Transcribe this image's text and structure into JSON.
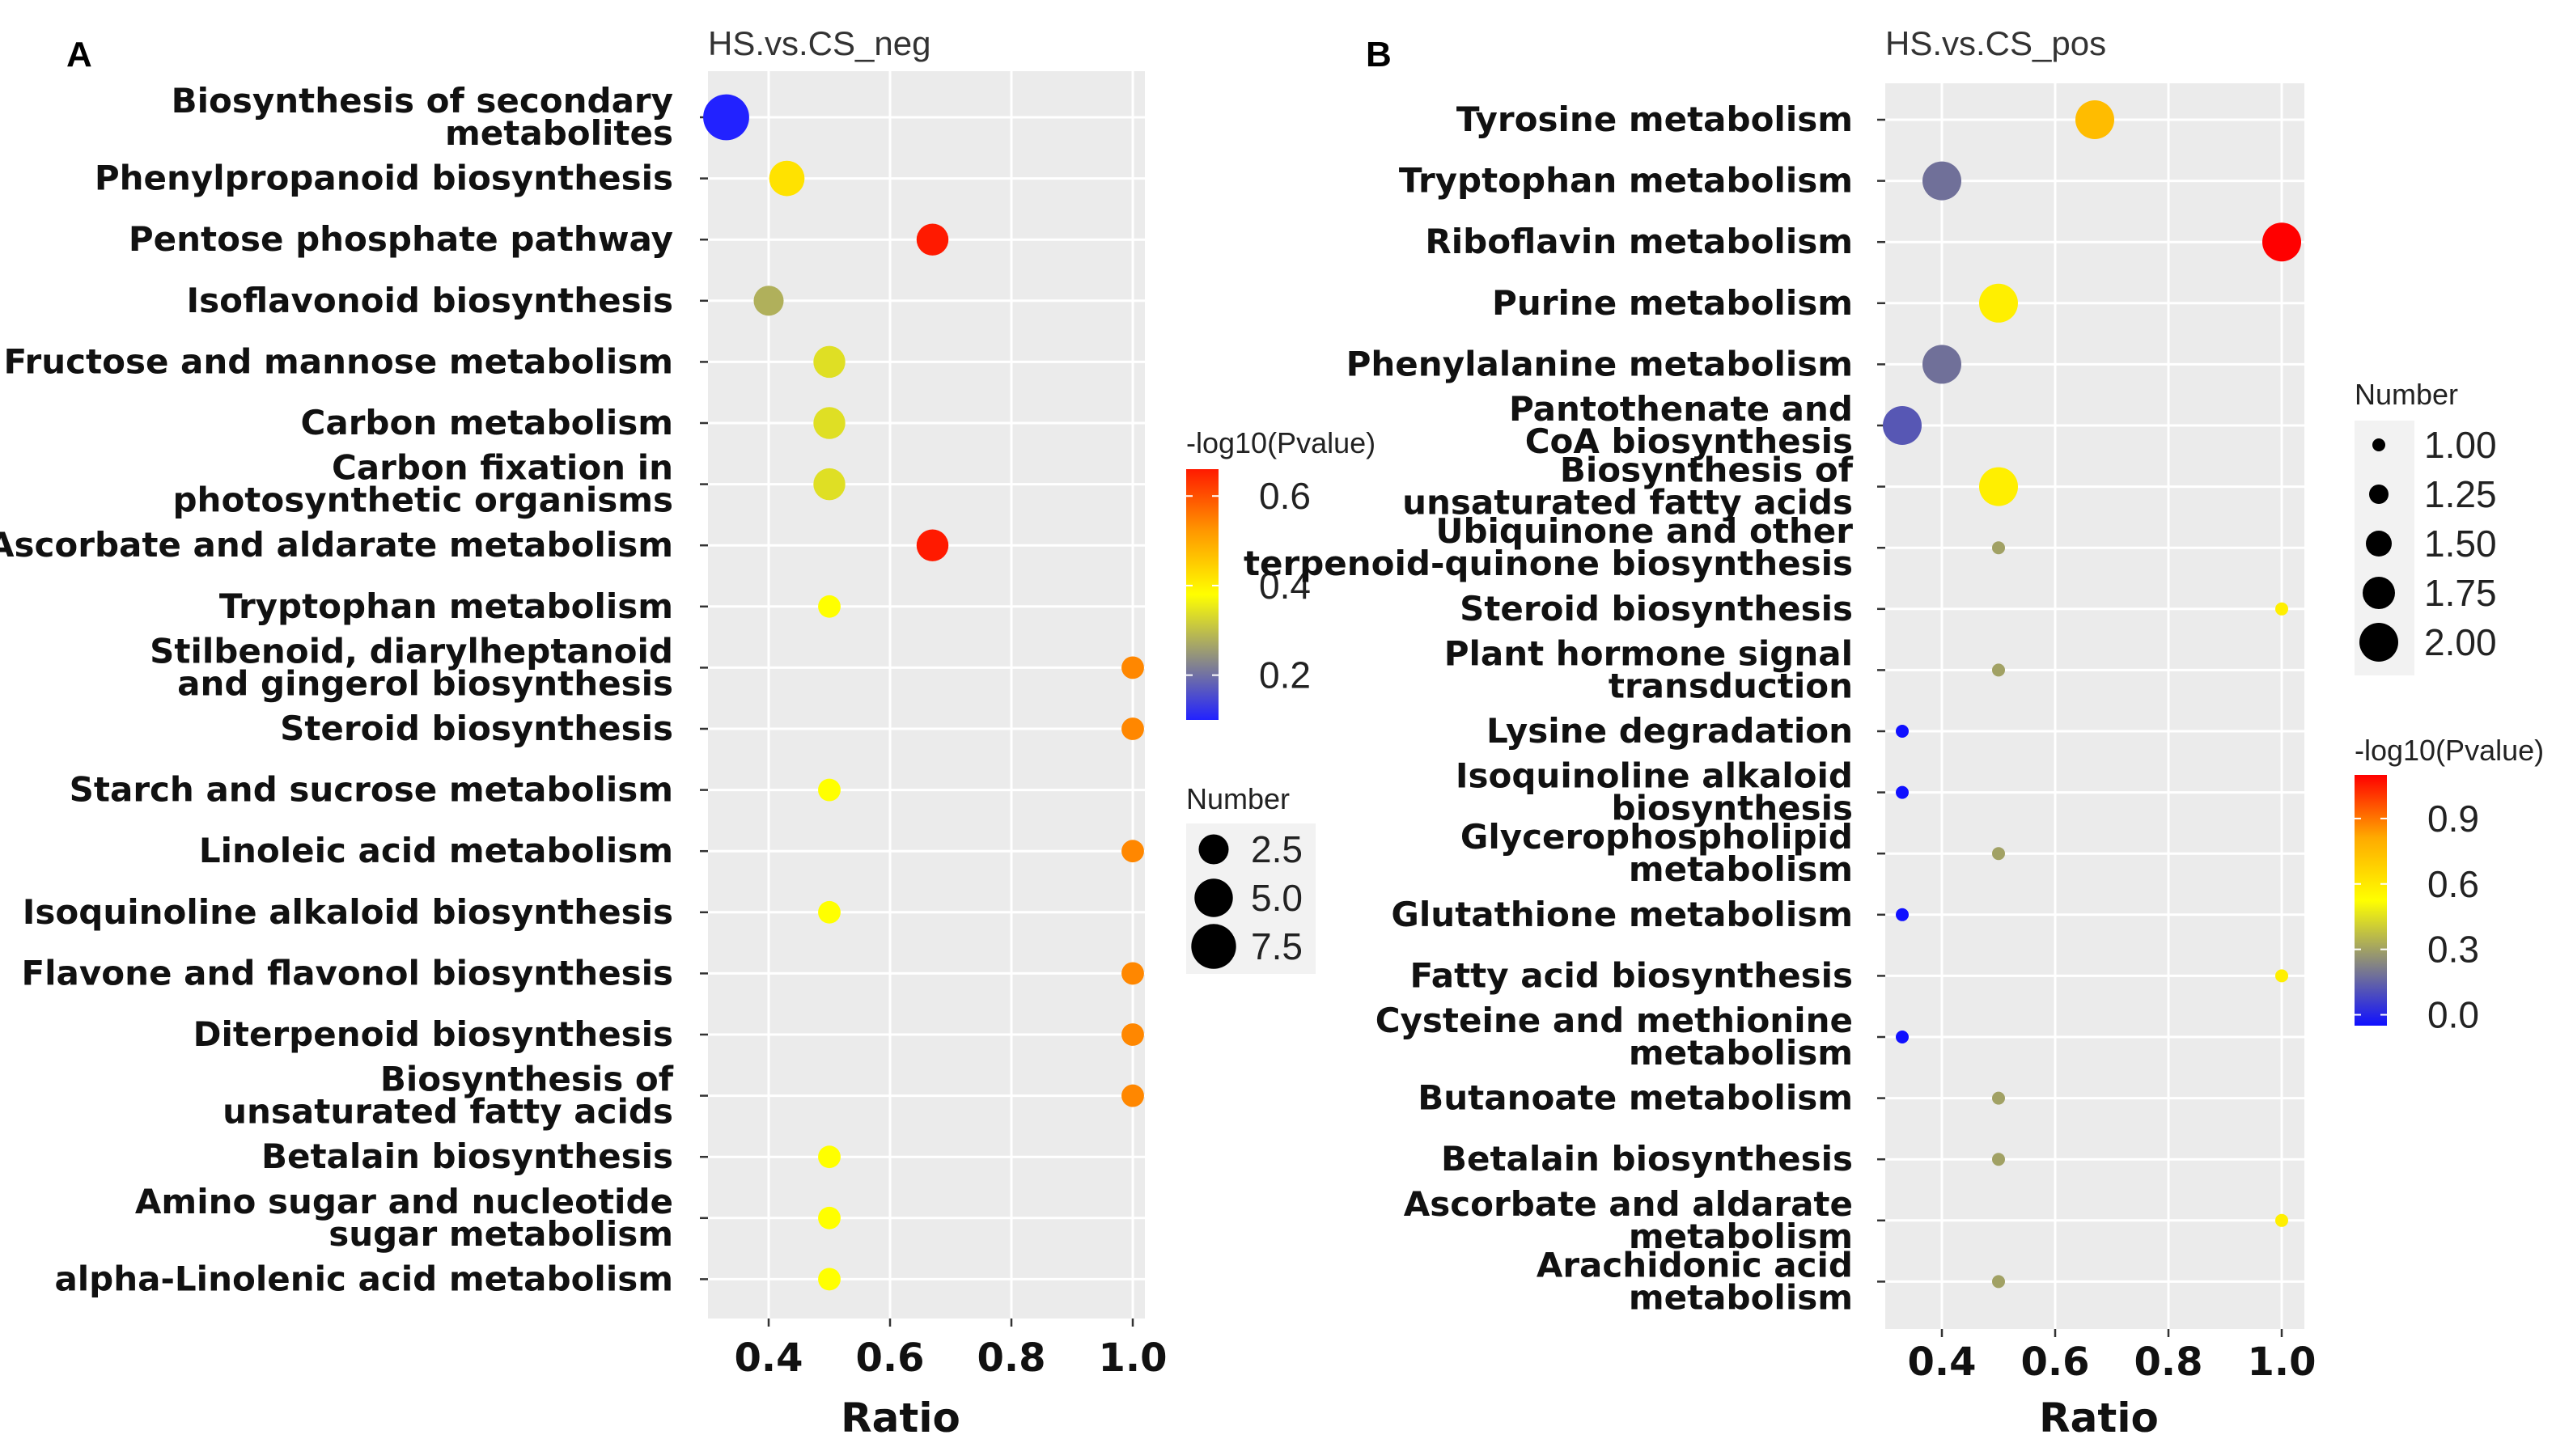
{
  "chart_data": [
    {
      "type": "scatter",
      "panel": "A",
      "title": "HS.vs.CS_neg",
      "xlabel": "Ratio",
      "xlim": [
        0.3,
        1.02
      ],
      "xticks": [
        0.4,
        0.6,
        0.8,
        1.0
      ],
      "xtick_labels": [
        "0.4",
        "0.6",
        "0.8",
        "1.0"
      ],
      "categories": [
        [
          "Biosynthesis of secondary",
          "metabolites"
        ],
        [
          "Phenylpropanoid biosynthesis"
        ],
        [
          "Pentose phosphate pathway"
        ],
        [
          "Isoflavonoid biosynthesis"
        ],
        [
          "Fructose and mannose metabolism"
        ],
        [
          "Carbon metabolism"
        ],
        [
          "Carbon fixation in",
          "photosynthetic organisms"
        ],
        [
          "Ascorbate and aldarate metabolism"
        ],
        [
          "Tryptophan metabolism"
        ],
        [
          "Stilbenoid, diarylheptanoid",
          "and gingerol biosynthesis"
        ],
        [
          "Steroid biosynthesis"
        ],
        [
          "Starch and sucrose metabolism"
        ],
        [
          "Linoleic acid metabolism"
        ],
        [
          "Isoquinoline alkaloid biosynthesis"
        ],
        [
          "Flavone and flavonol biosynthesis"
        ],
        [
          "Diterpenoid biosynthesis"
        ],
        [
          "Biosynthesis of",
          "unsaturated fatty acids"
        ],
        [
          "Betalain biosynthesis"
        ],
        [
          "Amino sugar and nucleotide",
          "sugar metabolism"
        ],
        [
          "alpha-Linolenic acid metabolism"
        ]
      ],
      "ratio": [
        0.33,
        0.43,
        0.67,
        0.4,
        0.5,
        0.5,
        0.5,
        0.67,
        0.5,
        1.0,
        1.0,
        0.5,
        1.0,
        0.5,
        1.0,
        1.0,
        1.0,
        0.5,
        0.5,
        0.5
      ],
      "number": [
        8,
        4,
        3,
        2.5,
        3,
        3,
        3,
        3,
        1,
        1,
        1,
        1,
        1,
        1,
        1,
        1,
        1,
        1,
        1,
        1
      ],
      "neglog10p": [
        0.1,
        0.42,
        0.66,
        0.28,
        0.34,
        0.34,
        0.34,
        0.66,
        0.38,
        0.54,
        0.54,
        0.38,
        0.54,
        0.38,
        0.54,
        0.54,
        0.54,
        0.38,
        0.38,
        0.38
      ],
      "color_legend": {
        "title": "-log10(Pvalue)",
        "min": 0.1,
        "max": 0.66,
        "ticks": [
          0.6,
          0.4,
          0.2
        ],
        "tick_labels": [
          "0.6",
          "0.4",
          "0.2"
        ]
      },
      "size_legend": {
        "title": "Number",
        "values": [
          2.5,
          5.0,
          7.5
        ],
        "labels": [
          "2.5",
          "5.0",
          "7.5"
        ]
      }
    },
    {
      "type": "scatter",
      "panel": "B",
      "title": "HS.vs.CS_pos",
      "xlabel": "Ratio",
      "xlim": [
        0.3,
        1.04
      ],
      "xticks": [
        0.4,
        0.6,
        0.8,
        1.0
      ],
      "xtick_labels": [
        "0.4",
        "0.6",
        "0.8",
        "1.0"
      ],
      "categories": [
        [
          "Tyrosine metabolism"
        ],
        [
          "Tryptophan metabolism"
        ],
        [
          "Riboflavin metabolism"
        ],
        [
          "Purine metabolism"
        ],
        [
          "Phenylalanine metabolism"
        ],
        [
          "Pantothenate and",
          "CoA biosynthesis"
        ],
        [
          "Biosynthesis of",
          "unsaturated fatty acids"
        ],
        [
          "Ubiquinone and other",
          "terpenoid-quinone biosynthesis"
        ],
        [
          "Steroid biosynthesis"
        ],
        [
          "Plant hormone signal",
          "transduction"
        ],
        [
          "Lysine degradation"
        ],
        [
          "Isoquinoline alkaloid",
          "biosynthesis"
        ],
        [
          "Glycerophospholipid",
          "metabolism"
        ],
        [
          "Glutathione metabolism"
        ],
        [
          "Fatty acid biosynthesis"
        ],
        [
          "Cysteine and methionine",
          "metabolism"
        ],
        [
          "Butanoate metabolism"
        ],
        [
          "Betalain biosynthesis"
        ],
        [
          "Ascorbate and aldarate",
          "metabolism"
        ],
        [
          "Arachidonic acid",
          "metabolism"
        ]
      ],
      "ratio": [
        0.67,
        0.4,
        1.0,
        0.5,
        0.4,
        0.33,
        0.5,
        0.5,
        1.0,
        0.5,
        0.33,
        0.33,
        0.5,
        0.33,
        1.0,
        0.33,
        0.5,
        0.5,
        1.0,
        0.5
      ],
      "number": [
        2,
        2,
        2,
        2,
        2,
        2,
        2,
        1,
        1,
        1,
        1,
        1,
        1,
        1,
        1,
        1,
        1,
        1,
        1,
        1
      ],
      "neglog10p": [
        0.75,
        0.18,
        1.1,
        0.58,
        0.18,
        0.12,
        0.58,
        0.3,
        0.58,
        0.3,
        -0.05,
        -0.05,
        0.3,
        -0.05,
        0.58,
        -0.05,
        0.3,
        0.3,
        0.58,
        0.3
      ],
      "color_legend": {
        "title": "-log10(Pvalue)",
        "min": -0.05,
        "max": 1.1,
        "ticks": [
          0.9,
          0.6,
          0.3,
          0.0
        ],
        "tick_labels": [
          "0.9",
          "0.6",
          "0.3",
          "0.0"
        ]
      },
      "size_legend": {
        "title": "Number",
        "values": [
          1.0,
          1.25,
          1.5,
          1.75,
          2.0
        ],
        "labels": [
          "1.00",
          "1.25",
          "1.50",
          "1.75",
          "2.00"
        ]
      }
    }
  ]
}
